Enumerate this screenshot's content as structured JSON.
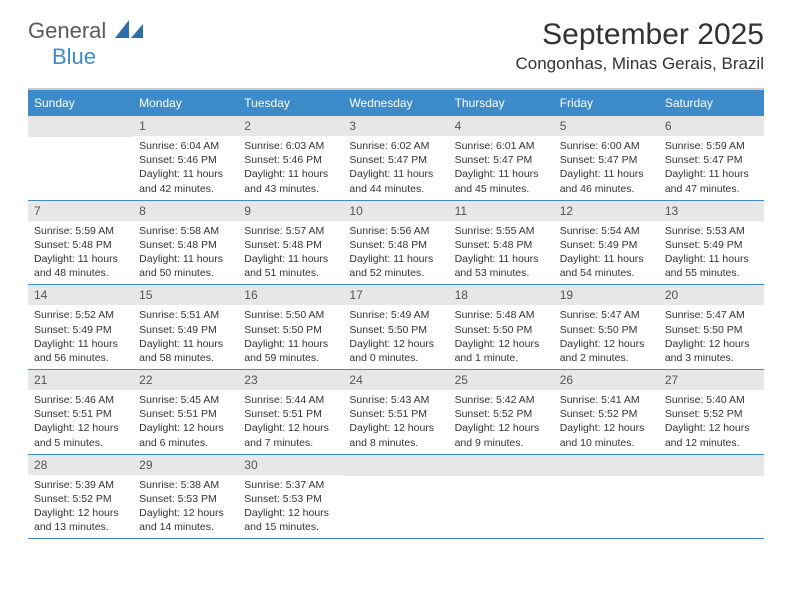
{
  "logo": {
    "text1": "General",
    "text2": "Blue",
    "shape_color": "#2f6fa8"
  },
  "header": {
    "month_title": "September 2025",
    "location": "Congonhas, Minas Gerais, Brazil"
  },
  "colors": {
    "header_bg": "#3d8bc8",
    "header_text": "#ffffff",
    "day_num_bg": "#e7e7e7",
    "day_num_text": "#555555",
    "row_border": "#3d8bc8",
    "body_text": "#333333"
  },
  "typography": {
    "month_title_fontsize": 30,
    "location_fontsize": 17,
    "dow_fontsize": 12,
    "daynum_fontsize": 12,
    "body_fontsize": 10.5
  },
  "days_of_week": [
    "Sunday",
    "Monday",
    "Tuesday",
    "Wednesday",
    "Thursday",
    "Friday",
    "Saturday"
  ],
  "weeks": [
    [
      null,
      {
        "n": "1",
        "sunrise": "6:04 AM",
        "sunset": "5:46 PM",
        "daylight": "11 hours and 42 minutes."
      },
      {
        "n": "2",
        "sunrise": "6:03 AM",
        "sunset": "5:46 PM",
        "daylight": "11 hours and 43 minutes."
      },
      {
        "n": "3",
        "sunrise": "6:02 AM",
        "sunset": "5:47 PM",
        "daylight": "11 hours and 44 minutes."
      },
      {
        "n": "4",
        "sunrise": "6:01 AM",
        "sunset": "5:47 PM",
        "daylight": "11 hours and 45 minutes."
      },
      {
        "n": "5",
        "sunrise": "6:00 AM",
        "sunset": "5:47 PM",
        "daylight": "11 hours and 46 minutes."
      },
      {
        "n": "6",
        "sunrise": "5:59 AM",
        "sunset": "5:47 PM",
        "daylight": "11 hours and 47 minutes."
      }
    ],
    [
      {
        "n": "7",
        "sunrise": "5:59 AM",
        "sunset": "5:48 PM",
        "daylight": "11 hours and 48 minutes."
      },
      {
        "n": "8",
        "sunrise": "5:58 AM",
        "sunset": "5:48 PM",
        "daylight": "11 hours and 50 minutes."
      },
      {
        "n": "9",
        "sunrise": "5:57 AM",
        "sunset": "5:48 PM",
        "daylight": "11 hours and 51 minutes."
      },
      {
        "n": "10",
        "sunrise": "5:56 AM",
        "sunset": "5:48 PM",
        "daylight": "11 hours and 52 minutes."
      },
      {
        "n": "11",
        "sunrise": "5:55 AM",
        "sunset": "5:48 PM",
        "daylight": "11 hours and 53 minutes."
      },
      {
        "n": "12",
        "sunrise": "5:54 AM",
        "sunset": "5:49 PM",
        "daylight": "11 hours and 54 minutes."
      },
      {
        "n": "13",
        "sunrise": "5:53 AM",
        "sunset": "5:49 PM",
        "daylight": "11 hours and 55 minutes."
      }
    ],
    [
      {
        "n": "14",
        "sunrise": "5:52 AM",
        "sunset": "5:49 PM",
        "daylight": "11 hours and 56 minutes."
      },
      {
        "n": "15",
        "sunrise": "5:51 AM",
        "sunset": "5:49 PM",
        "daylight": "11 hours and 58 minutes."
      },
      {
        "n": "16",
        "sunrise": "5:50 AM",
        "sunset": "5:50 PM",
        "daylight": "11 hours and 59 minutes."
      },
      {
        "n": "17",
        "sunrise": "5:49 AM",
        "sunset": "5:50 PM",
        "daylight": "12 hours and 0 minutes."
      },
      {
        "n": "18",
        "sunrise": "5:48 AM",
        "sunset": "5:50 PM",
        "daylight": "12 hours and 1 minute."
      },
      {
        "n": "19",
        "sunrise": "5:47 AM",
        "sunset": "5:50 PM",
        "daylight": "12 hours and 2 minutes."
      },
      {
        "n": "20",
        "sunrise": "5:47 AM",
        "sunset": "5:50 PM",
        "daylight": "12 hours and 3 minutes."
      }
    ],
    [
      {
        "n": "21",
        "sunrise": "5:46 AM",
        "sunset": "5:51 PM",
        "daylight": "12 hours and 5 minutes."
      },
      {
        "n": "22",
        "sunrise": "5:45 AM",
        "sunset": "5:51 PM",
        "daylight": "12 hours and 6 minutes."
      },
      {
        "n": "23",
        "sunrise": "5:44 AM",
        "sunset": "5:51 PM",
        "daylight": "12 hours and 7 minutes."
      },
      {
        "n": "24",
        "sunrise": "5:43 AM",
        "sunset": "5:51 PM",
        "daylight": "12 hours and 8 minutes."
      },
      {
        "n": "25",
        "sunrise": "5:42 AM",
        "sunset": "5:52 PM",
        "daylight": "12 hours and 9 minutes."
      },
      {
        "n": "26",
        "sunrise": "5:41 AM",
        "sunset": "5:52 PM",
        "daylight": "12 hours and 10 minutes."
      },
      {
        "n": "27",
        "sunrise": "5:40 AM",
        "sunset": "5:52 PM",
        "daylight": "12 hours and 12 minutes."
      }
    ],
    [
      {
        "n": "28",
        "sunrise": "5:39 AM",
        "sunset": "5:52 PM",
        "daylight": "12 hours and 13 minutes."
      },
      {
        "n": "29",
        "sunrise": "5:38 AM",
        "sunset": "5:53 PM",
        "daylight": "12 hours and 14 minutes."
      },
      {
        "n": "30",
        "sunrise": "5:37 AM",
        "sunset": "5:53 PM",
        "daylight": "12 hours and 15 minutes."
      },
      null,
      null,
      null,
      null
    ]
  ],
  "labels": {
    "sunrise": "Sunrise:",
    "sunset": "Sunset:",
    "daylight": "Daylight:"
  }
}
